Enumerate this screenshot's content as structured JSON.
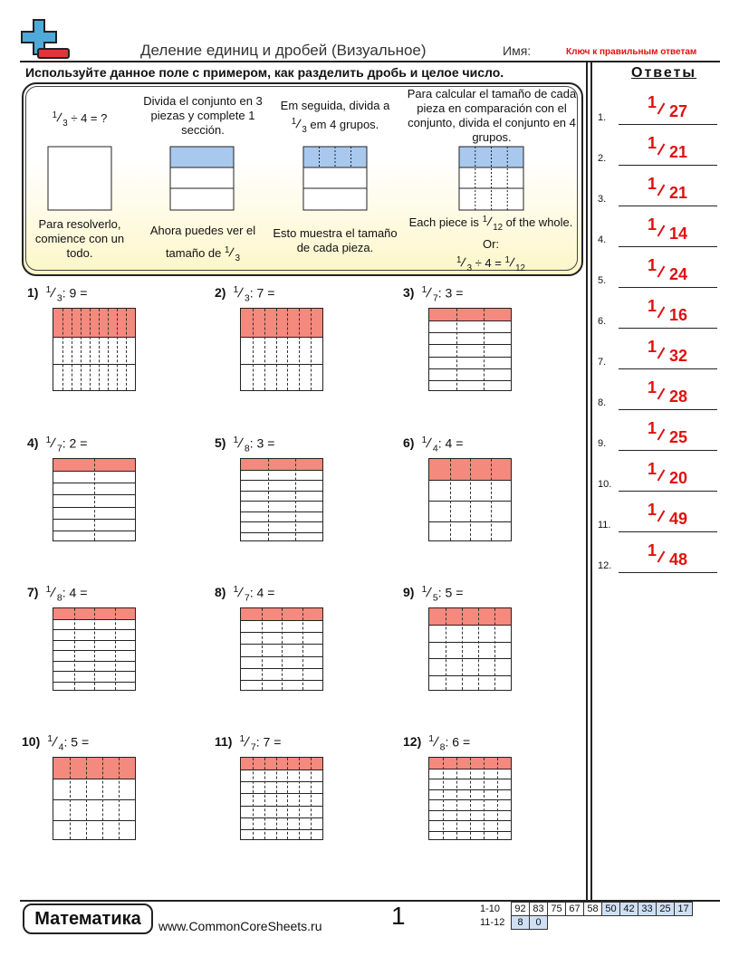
{
  "header": {
    "title": "Деление единиц и дробей (Визуальное)",
    "name_label": "Имя:",
    "answer_key": "Ключ к правильным ответам"
  },
  "instruction": "Используйте данное поле с примером, как разделить дробь и целое число.",
  "example": {
    "steps": [
      {
        "problem": {
          "numerator": "1",
          "denominator": "3",
          "rest": "÷ 4 = ?"
        },
        "caption": "Para resolverlo, comience con un todo."
      },
      {
        "text": "Divida el conjunto en 3 piezas y complete 1 sección.",
        "caption_before": "Ahora puedes ver el tamaño de",
        "caption_fraction": {
          "numerator": "1",
          "denominator": "3"
        }
      },
      {
        "text_before": "Em seguida, divida a",
        "text_fraction": {
          "numerator": "1",
          "denominator": "3"
        },
        "text_after": "em 4 grupos.",
        "caption": "Esto muestra el tamaño de cada pieza."
      },
      {
        "text": "Para calcular el tamaño de cada pieza en comparación con el conjunto, divida el conjunto en 4 grupos.",
        "caption_before": "Each piece is",
        "caption_fraction": {
          "numerator": "1",
          "denominator": "12"
        },
        "caption_after": "of the whole.",
        "or": "Or:",
        "equation": {
          "left": {
            "numerator": "1",
            "denominator": "3"
          },
          "operator": "÷ 4 =",
          "right": {
            "numerator": "1",
            "denominator": "12"
          }
        }
      }
    ]
  },
  "answers_title": "Ответы",
  "problems": [
    {
      "label": "1)",
      "numerator": 1,
      "denominator": 3,
      "operator": ":",
      "divisor": 9,
      "equals": "="
    },
    {
      "label": "2)",
      "numerator": 1,
      "denominator": 3,
      "operator": ":",
      "divisor": 7,
      "equals": "="
    },
    {
      "label": "3)",
      "numerator": 1,
      "denominator": 7,
      "operator": ":",
      "divisor": 3,
      "equals": "="
    },
    {
      "label": "4)",
      "numerator": 1,
      "denominator": 7,
      "operator": ":",
      "divisor": 2,
      "equals": "="
    },
    {
      "label": "5)",
      "numerator": 1,
      "denominator": 8,
      "operator": ":",
      "divisor": 3,
      "equals": "="
    },
    {
      "label": "6)",
      "numerator": 1,
      "denominator": 4,
      "operator": ":",
      "divisor": 4,
      "equals": "="
    },
    {
      "label": "7)",
      "numerator": 1,
      "denominator": 8,
      "operator": ":",
      "divisor": 4,
      "equals": "="
    },
    {
      "label": "8)",
      "numerator": 1,
      "denominator": 7,
      "operator": ":",
      "divisor": 4,
      "equals": "="
    },
    {
      "label": "9)",
      "numerator": 1,
      "denominator": 5,
      "operator": ":",
      "divisor": 5,
      "equals": "="
    },
    {
      "label": "10)",
      "numerator": 1,
      "denominator": 4,
      "operator": ":",
      "divisor": 5,
      "equals": "="
    },
    {
      "label": "11)",
      "numerator": 1,
      "denominator": 7,
      "operator": ":",
      "divisor": 7,
      "equals": "="
    },
    {
      "label": "12)",
      "numerator": 1,
      "denominator": 8,
      "operator": ":",
      "divisor": 6,
      "equals": "="
    }
  ],
  "answers": [
    {
      "label": "1.",
      "numerator": 1,
      "denominator": 27
    },
    {
      "label": "2.",
      "numerator": 1,
      "denominator": 21
    },
    {
      "label": "3.",
      "numerator": 1,
      "denominator": 21
    },
    {
      "label": "4.",
      "numerator": 1,
      "denominator": 14
    },
    {
      "label": "5.",
      "numerator": 1,
      "denominator": 24
    },
    {
      "label": "6.",
      "numerator": 1,
      "denominator": 16
    },
    {
      "label": "7.",
      "numerator": 1,
      "denominator": 32
    },
    {
      "label": "8.",
      "numerator": 1,
      "denominator": 28
    },
    {
      "label": "9.",
      "numerator": 1,
      "denominator": 25
    },
    {
      "label": "10.",
      "numerator": 1,
      "denominator": 20
    },
    {
      "label": "11.",
      "numerator": 1,
      "denominator": 49
    },
    {
      "label": "12.",
      "numerator": 1,
      "denominator": 48
    }
  ],
  "footer": {
    "subject": "Математика",
    "website": "www.CommonCoreSheets.ru",
    "page": "1",
    "score_table": {
      "rows": [
        {
          "label": "1-10",
          "scores": [
            92,
            83,
            75,
            67,
            58,
            50,
            42,
            33,
            25,
            17
          ]
        },
        {
          "label": "11-12",
          "scores": [
            8,
            0
          ]
        }
      ]
    }
  }
}
